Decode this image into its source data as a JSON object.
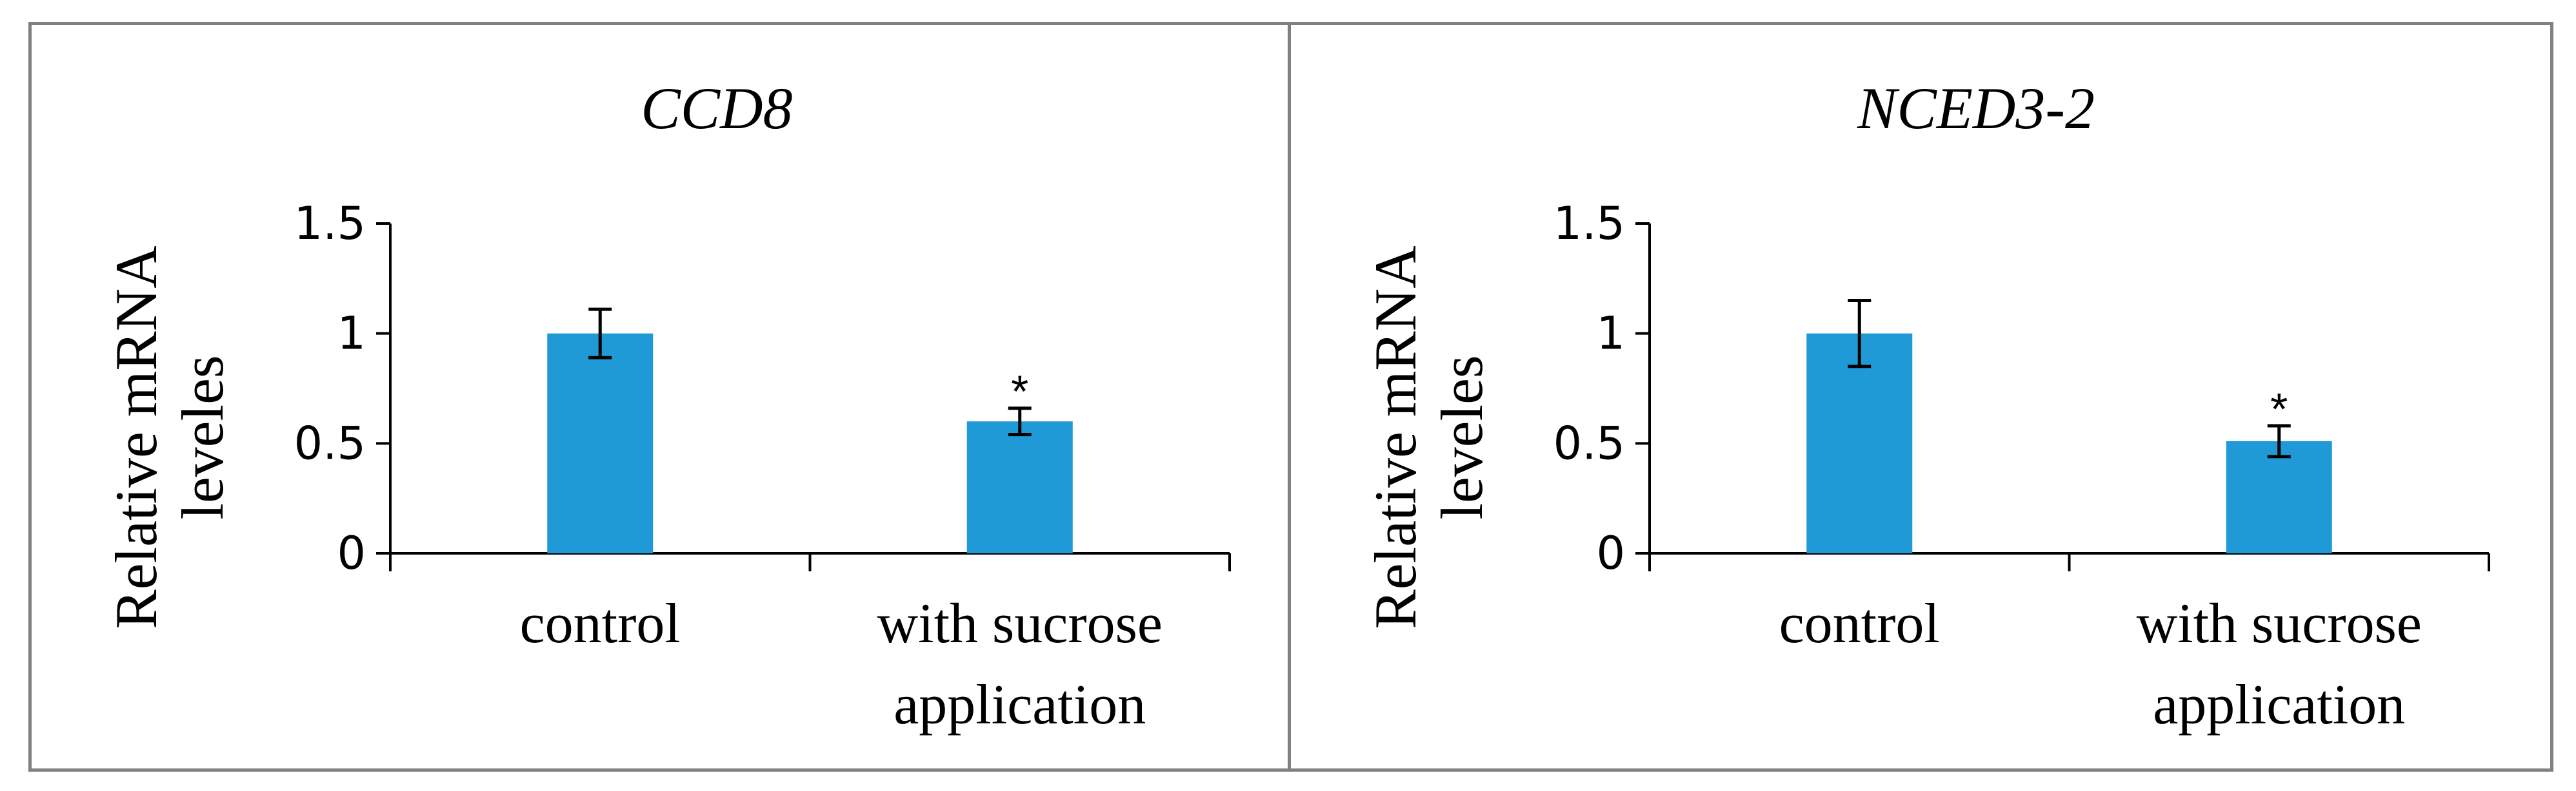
{
  "chart_data": [
    {
      "type": "bar",
      "title": "CCD8",
      "ylabel": "Relative mRNA leveles",
      "ylabel_lines": [
        "Relative mRNA",
        "leveles"
      ],
      "xlabel": "",
      "categories": [
        [
          "control"
        ],
        [
          "with sucrose",
          "application"
        ]
      ],
      "values": [
        1.0,
        0.6
      ],
      "errors": [
        0.11,
        0.06
      ],
      "annotations": [
        "",
        "*"
      ],
      "ylim": [
        0,
        1.5
      ],
      "yticks": [
        0,
        0.5,
        1,
        1.5
      ],
      "ytick_labels": [
        "0",
        "0.5",
        "1",
        "1.5"
      ],
      "grid": false,
      "bar_color": "#1f9ad6"
    },
    {
      "type": "bar",
      "title": "NCED3-2",
      "ylabel": "Relative mRNA leveles",
      "ylabel_lines": [
        "Relative mRNA",
        "leveles"
      ],
      "xlabel": "",
      "categories": [
        [
          "control"
        ],
        [
          "with sucrose",
          "application"
        ]
      ],
      "values": [
        1.0,
        0.51
      ],
      "errors": [
        0.15,
        0.07
      ],
      "annotations": [
        "",
        "*"
      ],
      "ylim": [
        0,
        1.5
      ],
      "yticks": [
        0,
        0.5,
        1,
        1.5
      ],
      "ytick_labels": [
        "0",
        "0.5",
        "1",
        "1.5"
      ],
      "grid": false,
      "bar_color": "#1f9ad6"
    }
  ]
}
